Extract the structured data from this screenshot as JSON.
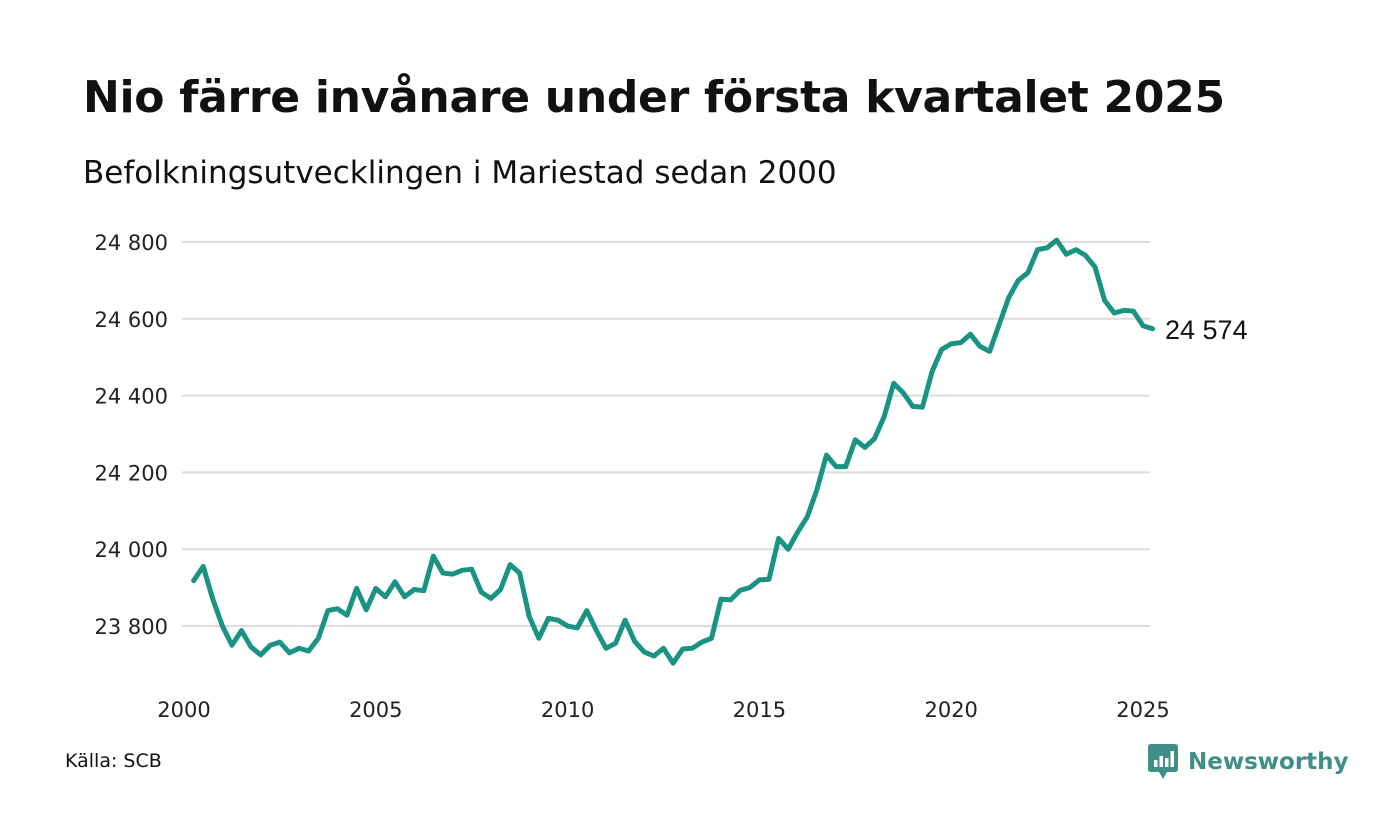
{
  "title": "Nio färre invånare under första kvartalet 2025",
  "subtitle": "Befolkningsutvecklingen i Mariestad sedan 2000",
  "source": "Källa: SCB",
  "brand": {
    "name": "Newsworthy",
    "color": "#3f8f86",
    "icon": "newsworthy-logo-icon"
  },
  "line_color": "#1a9383",
  "chart_data": {
    "type": "line",
    "title": "Nio färre invånare under första kvartalet 2025",
    "subtitle": "Befolkningsutvecklingen i Mariestad sedan 2000",
    "xlabel": "",
    "ylabel": "",
    "xlim": [
      2000,
      2025.25
    ],
    "ylim": [
      23700,
      24815
    ],
    "grid": true,
    "y_ticks": [
      {
        "value": 23800,
        "label": "23 800"
      },
      {
        "value": 24000,
        "label": "24 000"
      },
      {
        "value": 24200,
        "label": "24 200"
      },
      {
        "value": 24400,
        "label": "24 400"
      },
      {
        "value": 24600,
        "label": "24 600"
      },
      {
        "value": 24800,
        "label": "24 800"
      }
    ],
    "x_ticks": [
      {
        "value": 2000,
        "label": "2000"
      },
      {
        "value": 2005,
        "label": "2005"
      },
      {
        "value": 2010,
        "label": "2010"
      },
      {
        "value": 2015,
        "label": "2015"
      },
      {
        "value": 2020,
        "label": "2020"
      },
      {
        "value": 2025,
        "label": "2025"
      }
    ],
    "end_label": "24 574",
    "x_start": 2000.25,
    "x_step": 0.25,
    "values": [
      23918,
      23955,
      23870,
      23800,
      23750,
      23788,
      23745,
      23725,
      23750,
      23758,
      23730,
      23742,
      23735,
      23768,
      23840,
      23845,
      23828,
      23898,
      23842,
      23898,
      23876,
      23915,
      23876,
      23895,
      23892,
      23982,
      23938,
      23935,
      23945,
      23948,
      23888,
      23872,
      23895,
      23960,
      23938,
      23825,
      23768,
      23820,
      23815,
      23800,
      23795,
      23840,
      23788,
      23742,
      23755,
      23815,
      23760,
      23732,
      23722,
      23742,
      23703,
      23740,
      23742,
      23758,
      23768,
      23870,
      23868,
      23893,
      23900,
      23920,
      23922,
      24028,
      24000,
      24045,
      24085,
      24155,
      24245,
      24215,
      24215,
      24285,
      24265,
      24288,
      24345,
      24432,
      24407,
      24372,
      24370,
      24462,
      24520,
      24535,
      24538,
      24560,
      24528,
      24515,
      24585,
      24655,
      24700,
      24720,
      24780,
      24785,
      24805,
      24768,
      24780,
      24765,
      24735,
      24648,
      24615,
      24622,
      24620,
      24582,
      24574
    ]
  }
}
